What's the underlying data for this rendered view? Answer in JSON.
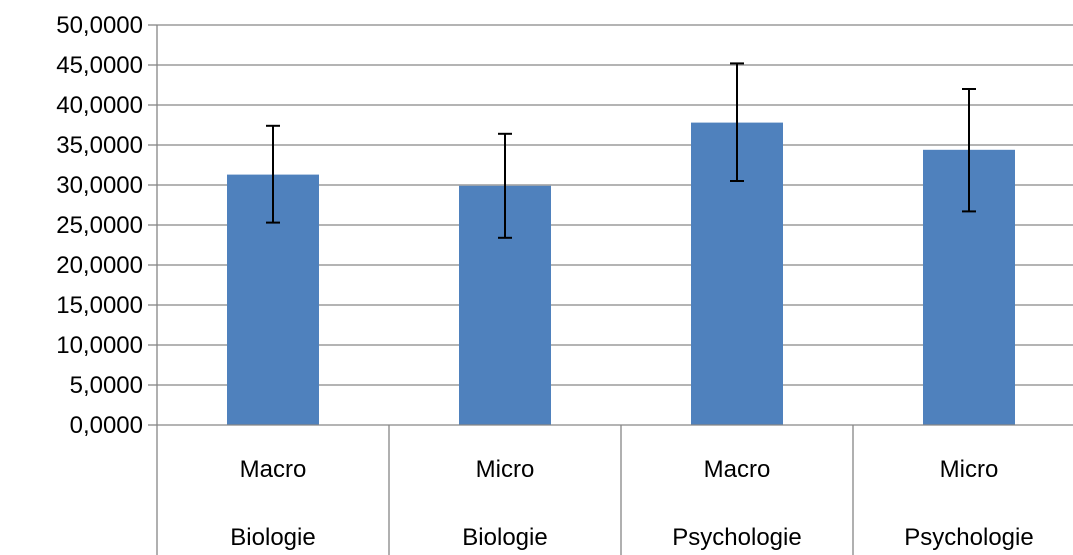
{
  "chart_data": {
    "type": "bar",
    "title": "",
    "xlabel": "",
    "ylabel": "",
    "ylim": [
      0,
      50
    ],
    "y_ticks": [
      "0,0000",
      "5,0000",
      "10,0000",
      "15,0000",
      "20,0000",
      "25,0000",
      "30,0000",
      "35,0000",
      "40,0000",
      "45,0000",
      "50,0000"
    ],
    "grid": true,
    "categories": [
      {
        "level1": "Macro",
        "level2": "Biologie"
      },
      {
        "level1": "Micro",
        "level2": "Biologie"
      },
      {
        "level1": "Macro",
        "level2": "Psychologie"
      },
      {
        "level1": "Micro",
        "level2": "Psychologie"
      }
    ],
    "values": [
      31.3,
      29.9,
      37.8,
      34.4
    ],
    "error_bars": [
      {
        "low": 25.3,
        "high": 37.4
      },
      {
        "low": 23.4,
        "high": 36.4
      },
      {
        "low": 30.5,
        "high": 45.2
      },
      {
        "low": 26.7,
        "high": 42.0
      }
    ],
    "bar_color": "#4F81BD",
    "grid_color": "#868686"
  }
}
